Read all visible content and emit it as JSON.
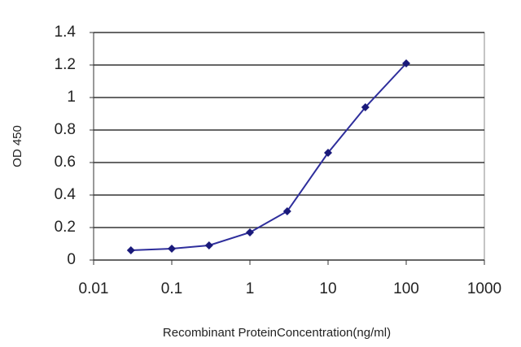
{
  "chart_data": {
    "type": "line",
    "x": [
      0.03,
      0.1,
      0.3,
      1,
      3,
      10,
      30,
      100
    ],
    "values": [
      0.06,
      0.07,
      0.09,
      0.17,
      0.3,
      0.66,
      0.94,
      1.21
    ],
    "color": "#2e2e9c",
    "xlabel": "Recombinant ProteinConcentration(ng/ml)",
    "ylabel": "OD 450",
    "xscale": "log",
    "xlim": [
      0.01,
      1000
    ],
    "xticks": [
      0.01,
      0.1,
      1,
      10,
      100,
      1000
    ],
    "ylim": [
      0,
      1.4
    ],
    "yticks": [
      0,
      0.2,
      0.4,
      0.6,
      0.8,
      1,
      1.2,
      1.4
    ],
    "grid": true
  }
}
